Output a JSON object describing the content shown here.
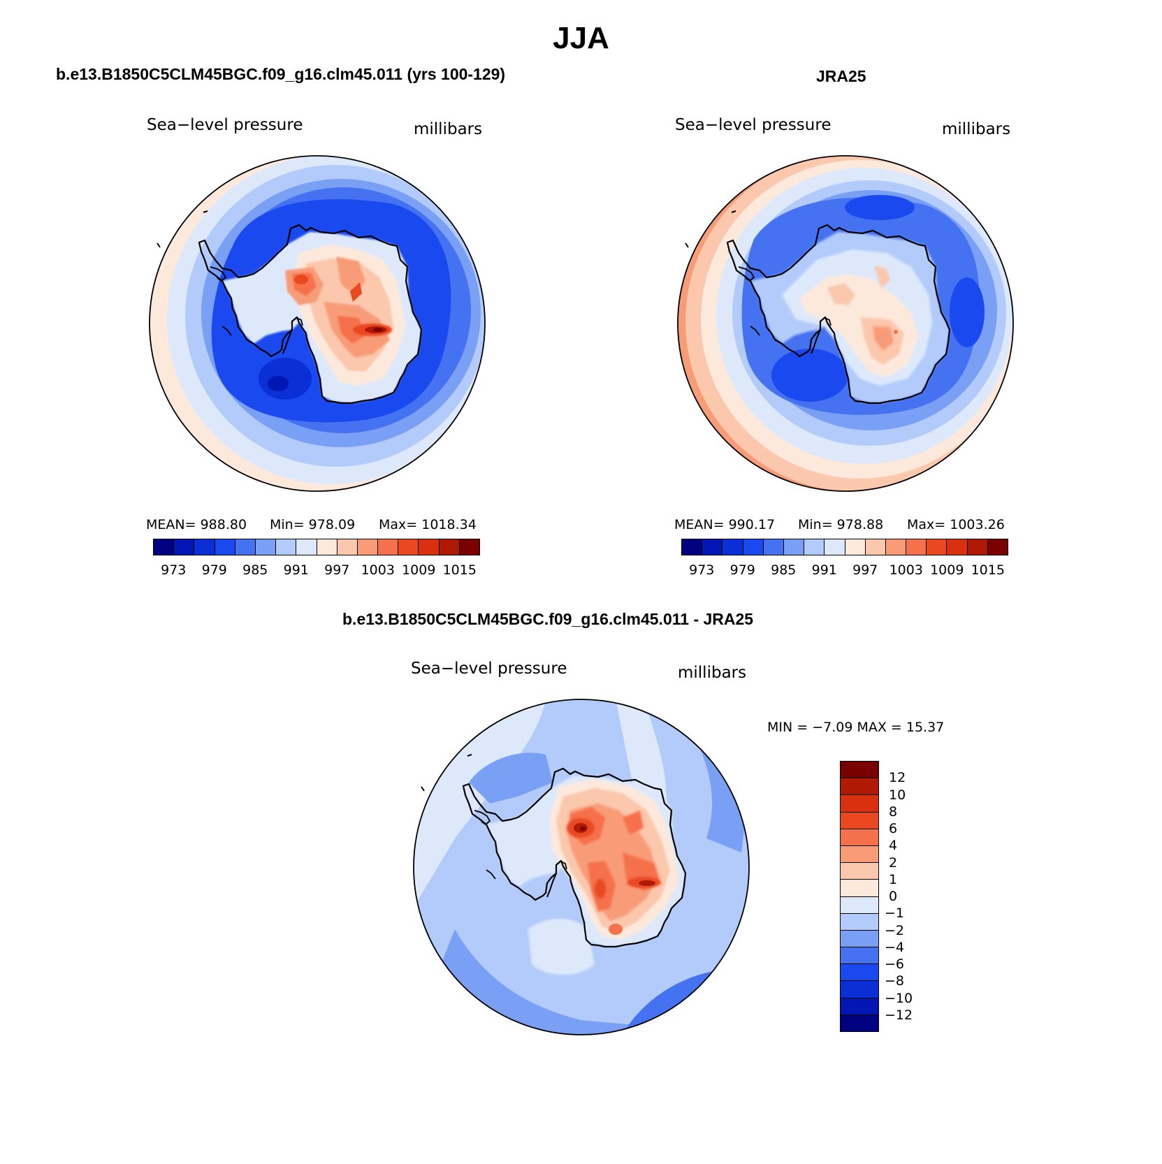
{
  "title": "JJA",
  "colors": {
    "full_field": [
      "#000080",
      "#0017b3",
      "#0a2fd6",
      "#1a49f0",
      "#4472f0",
      "#7aa0f5",
      "#b2cbfa",
      "#dde9fb",
      "#fde9dc",
      "#fbc7ad",
      "#f89c78",
      "#f5714c",
      "#e94820",
      "#d93010",
      "#b01a05",
      "#7a0000"
    ],
    "difference": [
      "#7a0000",
      "#b01a05",
      "#d93010",
      "#e94820",
      "#f5714c",
      "#f89c78",
      "#fbc7ad",
      "#fde9dc",
      "#dde9fb",
      "#b2cbfa",
      "#7aa0f5",
      "#4472f0",
      "#1a49f0",
      "#0a2fd6",
      "#0017b3",
      "#000080"
    ],
    "coastline": "#000000"
  },
  "panels": {
    "model": {
      "title": "b.e13.B1850C5CLM45BGC.f09_g16.clm45.011 (yrs 100-129)",
      "variable": "Sea−level pressure",
      "units": "millibars",
      "mean_label": "MEAN=  988.80",
      "min_label": "Min=  978.09",
      "max_label": "Max=  1018.34",
      "colorbar_ticks": [
        "973",
        "979",
        "985",
        "991",
        "997",
        "1003",
        "1009",
        "1015"
      ]
    },
    "obs": {
      "title": "JRA25",
      "variable": "Sea−level pressure",
      "units": "millibars",
      "mean_label": "MEAN=  990.17",
      "min_label": "Min=  978.88",
      "max_label": "Max=  1003.26",
      "colorbar_ticks": [
        "973",
        "979",
        "985",
        "991",
        "997",
        "1003",
        "1009",
        "1015"
      ]
    },
    "diff": {
      "title": "b.e13.B1850C5CLM45BGC.f09_g16.clm45.011 - JRA25",
      "variable": "Sea−level pressure",
      "units": "millibars",
      "minmax_label": "MIN =   −7.09  MAX =   15.37",
      "colorbar_ticks": [
        "12",
        "10",
        "8",
        "6",
        "4",
        "2",
        "1",
        "0",
        "−1",
        "−2",
        "−4",
        "−6",
        "−8",
        "−10",
        "−12"
      ]
    }
  }
}
